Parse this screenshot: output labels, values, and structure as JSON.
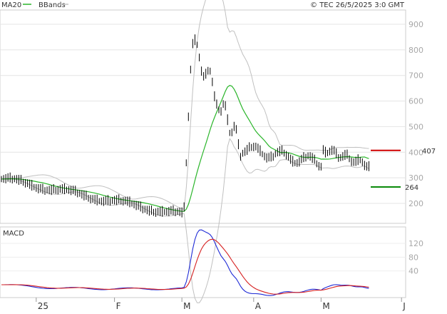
{
  "header": {
    "legend": [
      {
        "label": "MA20",
        "color": "#2ab52a"
      },
      {
        "label": "BBands",
        "color": "#c0c0c0"
      }
    ],
    "copyright": "© TEC 26/5/2025 3:0 GMT"
  },
  "chart_data": [
    {
      "type": "line",
      "panel": "price",
      "x": [
        0,
        1,
        2,
        3,
        4,
        5,
        6,
        7,
        8,
        9,
        10,
        11,
        12,
        13,
        14,
        15,
        16,
        17,
        18,
        19,
        20,
        21,
        22,
        23,
        24,
        25,
        26,
        27,
        28,
        29,
        30,
        31,
        32,
        33,
        34,
        35,
        36,
        37,
        38,
        39,
        40,
        41,
        42,
        43,
        44,
        45,
        46,
        47,
        48,
        49,
        50,
        51,
        52,
        53,
        54,
        55,
        56,
        57,
        58,
        59,
        60,
        61,
        62,
        63,
        64,
        65,
        66,
        67,
        68,
        69,
        70,
        71,
        72,
        73,
        74,
        75,
        76,
        77,
        78,
        79,
        80,
        81,
        82,
        83,
        84,
        85,
        86,
        87,
        88,
        89,
        90,
        91,
        92,
        93,
        94,
        95,
        96,
        97,
        98,
        99,
        100,
        101,
        102,
        103,
        104,
        105,
        106,
        107,
        108,
        109,
        110,
        111,
        112,
        113,
        114,
        115,
        116,
        117,
        118,
        119,
        120,
        121,
        122,
        123,
        124,
        125,
        126,
        127,
        128,
        129,
        130,
        131,
        132,
        133,
        134,
        135,
        136,
        137,
        138,
        139,
        140,
        141,
        142,
        143,
        144,
        145,
        146,
        147,
        148,
        149,
        150,
        151,
        152,
        153,
        154,
        155,
        156,
        157,
        158,
        159,
        160,
        161,
        162,
        163,
        164,
        165,
        166,
        167,
        168,
        169,
        170,
        171,
        172,
        173,
        174,
        175,
        176,
        177,
        178,
        179,
        180,
        181,
        182,
        183,
        184,
        185,
        186,
        187,
        188,
        189,
        190,
        191,
        192,
        193,
        194,
        195,
        196,
        197,
        198,
        199,
        200,
        201,
        202,
        203,
        204,
        205,
        206,
        207,
        208,
        209,
        210,
        211,
        212,
        213,
        214,
        215,
        216,
        217,
        218,
        219,
        220,
        221,
        222,
        223,
        224,
        225,
        226,
        227,
        228,
        229,
        230,
        231,
        232,
        233,
        234,
        235,
        236,
        237,
        238,
        239,
        240,
        241,
        242,
        243,
        244,
        245,
        246,
        247,
        248,
        249,
        250,
        251,
        252,
        253,
        254,
        255,
        256,
        257,
        258,
        259,
        260,
        261,
        262,
        263,
        264,
        265,
        266,
        267,
        268,
        269,
        270,
        271,
        272,
        273,
        274,
        275,
        276,
        277,
        278,
        279,
        280,
        281,
        282,
        283,
        284,
        285,
        286,
        287,
        288,
        289,
        290,
        291,
        292,
        293,
        294,
        295,
        296,
        297,
        298,
        299,
        300,
        301,
        302,
        303,
        304,
        305,
        306,
        307,
        308,
        309,
        310,
        311,
        312,
        313,
        314,
        315,
        316,
        317,
        318,
        319,
        320,
        321,
        322,
        323,
        324,
        325,
        326,
        327,
        328,
        329,
        330,
        331,
        332,
        333,
        334,
        335,
        336,
        337,
        338,
        339,
        340,
        341,
        342,
        343,
        344,
        345,
        346,
        347,
        348,
        349,
        350,
        351,
        352,
        353,
        354,
        355,
        356,
        357,
        358,
        359,
        360,
        361,
        362,
        363,
        364,
        365,
        366,
        367,
        368,
        369,
        370,
        371,
        372,
        373,
        374,
        375,
        376,
        377,
        378,
        379,
        380,
        381,
        382,
        383,
        384,
        385,
        386,
        387,
        388,
        389,
        390,
        391,
        392,
        393,
        394,
        395,
        396,
        397,
        398,
        399,
        400,
        401,
        402,
        403,
        404,
        405,
        406,
        407,
        408,
        409,
        410,
        411,
        412,
        413,
        414,
        415,
        416,
        417,
        418,
        419,
        420,
        421,
        422,
        423,
        424,
        425,
        426,
        427,
        428,
        429,
        430,
        431,
        432,
        433,
        434,
        435,
        436,
        437,
        438,
        439,
        440,
        441,
        442,
        443,
        444,
        445,
        446,
        447,
        448,
        449,
        450,
        451,
        452,
        453,
        454,
        455,
        456,
        457,
        458,
        459,
        460,
        461,
        462,
        463,
        464,
        465,
        466,
        467,
        468,
        469,
        470,
        471,
        472,
        473,
        474,
        475,
        476,
        477,
        478,
        479,
        480,
        481,
        482,
        483,
        484,
        485,
        486,
        487,
        488,
        489,
        490,
        491,
        492,
        493,
        494,
        495,
        496,
        497,
        498,
        499,
        500,
        501,
        502,
        503,
        504,
        505,
        506,
        507,
        508,
        509,
        510,
        511,
        512,
        513,
        514,
        515,
        516,
        517,
        518,
        519,
        520,
        521,
        522,
        523,
        524,
        525,
        526,
        527,
        528,
        529,
        530,
        531,
        532,
        533,
        534,
        535,
        536,
        537,
        538,
        539,
        540,
        541,
        542,
        543,
        544,
        545,
        546,
        547,
        548,
        549,
        550,
        551,
        552,
        553,
        554,
        555,
        556,
        557,
        558,
        559,
        560,
        561,
        562,
        563,
        564,
        565,
        566
      ],
      "ylim": [
        110,
        950
      ]
    },
    {
      "type": "line",
      "panel": "macd",
      "title": "MACD"
    }
  ]
}
